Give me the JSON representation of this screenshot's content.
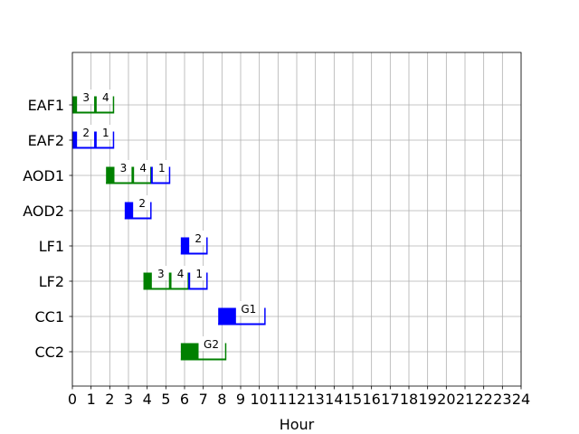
{
  "chart_data": {
    "type": "gantt",
    "title": "",
    "xlabel": "Hour",
    "ylabel": "",
    "xlim": [
      0,
      24
    ],
    "x_ticks": [
      "0",
      "1",
      "2",
      "3",
      "4",
      "5",
      "6",
      "7",
      "8",
      "9",
      "10",
      "11",
      "12",
      "13",
      "14",
      "15",
      "16",
      "17",
      "18",
      "19",
      "20",
      "21",
      "22",
      "23",
      "24"
    ],
    "grid": true,
    "rows": [
      "EAF1",
      "EAF2",
      "AOD1",
      "AOD2",
      "LF1",
      "LF2",
      "CC1",
      "CC2"
    ],
    "colors": {
      "green": "#008000",
      "blue": "#0000ff"
    },
    "tasks": [
      {
        "row": "EAF1",
        "label": "3",
        "start": 0.0,
        "end": 1.2,
        "setup_end": 0.25,
        "color": "green"
      },
      {
        "row": "EAF1",
        "label": "4",
        "start": 1.2,
        "end": 2.2,
        "setup_end": 1.3,
        "color": "green"
      },
      {
        "row": "EAF2",
        "label": "2",
        "start": 0.0,
        "end": 1.2,
        "setup_end": 0.25,
        "color": "blue"
      },
      {
        "row": "EAF2",
        "label": "1",
        "start": 1.2,
        "end": 2.2,
        "setup_end": 1.3,
        "color": "blue"
      },
      {
        "row": "AOD1",
        "label": "3",
        "start": 1.8,
        "end": 3.2,
        "setup_end": 2.25,
        "color": "green"
      },
      {
        "row": "AOD1",
        "label": "4",
        "start": 3.2,
        "end": 4.2,
        "setup_end": 3.3,
        "color": "green"
      },
      {
        "row": "AOD1",
        "label": "1",
        "start": 4.2,
        "end": 5.2,
        "setup_end": 4.3,
        "color": "blue"
      },
      {
        "row": "AOD2",
        "label": "2",
        "start": 2.8,
        "end": 4.2,
        "setup_end": 3.25,
        "color": "blue"
      },
      {
        "row": "LF1",
        "label": "2",
        "start": 5.8,
        "end": 7.2,
        "setup_end": 6.25,
        "color": "blue"
      },
      {
        "row": "LF2",
        "label": "3",
        "start": 3.8,
        "end": 5.2,
        "setup_end": 4.25,
        "color": "green"
      },
      {
        "row": "LF2",
        "label": "4",
        "start": 5.2,
        "end": 6.2,
        "setup_end": 5.3,
        "color": "green"
      },
      {
        "row": "LF2",
        "label": "1",
        "start": 6.2,
        "end": 7.2,
        "setup_end": 6.3,
        "color": "blue"
      },
      {
        "row": "CC1",
        "label": "G1",
        "start": 7.8,
        "end": 10.3,
        "setup_end": 8.75,
        "color": "blue"
      },
      {
        "row": "CC2",
        "label": "G2",
        "start": 5.8,
        "end": 8.2,
        "setup_end": 6.75,
        "color": "green"
      }
    ]
  }
}
